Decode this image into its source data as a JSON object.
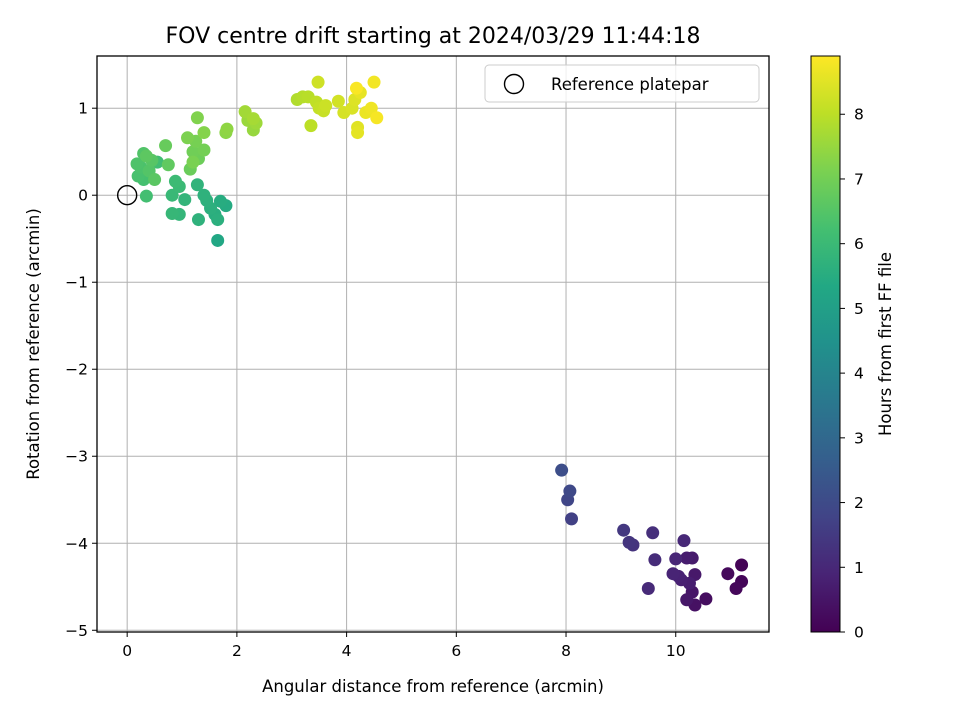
{
  "chart_data": {
    "type": "scatter",
    "title": "FOV centre drift starting at 2024/03/29 11:44:18",
    "xlabel": "Angular distance from reference (arcmin)",
    "ylabel": "Rotation from reference (arcmin)",
    "xlim": [
      -0.55,
      11.7
    ],
    "ylim": [
      -5.02,
      1.6
    ],
    "xticks": [
      0,
      2,
      4,
      6,
      8,
      10
    ],
    "yticks": [
      -5,
      -4,
      -3,
      -2,
      -1,
      0,
      1
    ],
    "xtick_labels": [
      "0",
      "2",
      "4",
      "6",
      "8",
      "10"
    ],
    "ytick_labels": [
      "−5",
      "−4",
      "−3",
      "−2",
      "−1",
      "0",
      "1"
    ],
    "grid": true,
    "colormap": "viridis",
    "colorbar": {
      "label": "Hours from first FF file",
      "range": [
        0,
        8.9
      ],
      "ticks": [
        0,
        1,
        2,
        3,
        4,
        5,
        6,
        7,
        8
      ],
      "tick_labels": [
        "0",
        "1",
        "2",
        "3",
        "4",
        "5",
        "6",
        "7",
        "8"
      ]
    },
    "legend": {
      "position": "top-right",
      "entries": [
        {
          "label": "Reference platepar",
          "marker": "open-circle"
        }
      ]
    },
    "reference_point": {
      "x": 0,
      "y": 0
    },
    "series": [
      {
        "points": [
          [
            11.2,
            -4.25,
            0.05
          ],
          [
            11.2,
            -4.44,
            0.1
          ],
          [
            11.1,
            -4.52,
            0.15
          ],
          [
            10.95,
            -4.35,
            0.2
          ],
          [
            10.55,
            -4.64,
            0.3
          ],
          [
            10.35,
            -4.71,
            0.4
          ],
          [
            10.3,
            -4.56,
            0.5
          ],
          [
            10.2,
            -4.65,
            0.55
          ],
          [
            10.35,
            -4.36,
            0.6
          ],
          [
            10.3,
            -4.17,
            0.65
          ],
          [
            10.2,
            -4.17,
            0.7
          ],
          [
            10.25,
            -4.46,
            0.75
          ],
          [
            10.1,
            -4.42,
            0.8
          ],
          [
            10.05,
            -4.38,
            0.85
          ],
          [
            9.95,
            -4.35,
            0.9
          ],
          [
            10.0,
            -4.18,
            0.95
          ],
          [
            10.15,
            -3.97,
            1.0
          ],
          [
            9.5,
            -4.52,
            1.05
          ],
          [
            9.62,
            -4.19,
            1.1
          ],
          [
            9.58,
            -3.88,
            1.2
          ],
          [
            9.22,
            -4.02,
            1.3
          ],
          [
            9.15,
            -3.99,
            1.35
          ],
          [
            9.05,
            -3.85,
            1.45
          ],
          [
            8.1,
            -3.72,
            1.7
          ],
          [
            8.03,
            -3.5,
            1.85
          ],
          [
            8.07,
            -3.4,
            1.95
          ],
          [
            7.92,
            -3.16,
            2.1
          ],
          [
            1.65,
            -0.52,
            5.3
          ],
          [
            1.8,
            -0.12,
            5.45
          ],
          [
            1.7,
            -0.07,
            5.5
          ],
          [
            1.6,
            -0.22,
            5.55
          ],
          [
            1.65,
            -0.28,
            5.6
          ],
          [
            1.52,
            -0.15,
            5.62
          ],
          [
            1.45,
            -0.06,
            5.65
          ],
          [
            1.4,
            0.0,
            5.68
          ],
          [
            1.3,
            -0.28,
            5.7
          ],
          [
            1.28,
            0.12,
            5.75
          ],
          [
            1.05,
            -0.05,
            5.8
          ],
          [
            0.95,
            -0.22,
            5.85
          ],
          [
            0.82,
            -0.21,
            5.9
          ],
          [
            0.82,
            0.0,
            5.95
          ],
          [
            0.95,
            0.1,
            6.0
          ],
          [
            0.88,
            0.16,
            6.05
          ],
          [
            0.55,
            0.38,
            6.15
          ],
          [
            0.35,
            -0.01,
            6.2
          ],
          [
            0.3,
            0.18,
            6.25
          ],
          [
            0.2,
            0.22,
            6.3
          ],
          [
            0.25,
            0.32,
            6.35
          ],
          [
            0.18,
            0.36,
            6.4
          ],
          [
            0.3,
            0.48,
            6.45
          ],
          [
            0.4,
            0.28,
            6.5
          ],
          [
            0.45,
            0.4,
            6.55
          ],
          [
            0.5,
            0.18,
            6.6
          ],
          [
            0.35,
            0.45,
            6.65
          ],
          [
            0.75,
            0.35,
            6.7
          ],
          [
            0.7,
            0.57,
            6.8
          ],
          [
            1.15,
            0.3,
            6.85
          ],
          [
            1.3,
            0.42,
            6.9
          ],
          [
            1.2,
            0.5,
            6.95
          ],
          [
            1.4,
            0.52,
            7.0
          ],
          [
            1.25,
            0.62,
            7.05
          ],
          [
            1.2,
            0.38,
            7.1
          ],
          [
            1.1,
            0.66,
            7.15
          ],
          [
            1.28,
            0.89,
            7.2
          ],
          [
            1.4,
            0.72,
            7.25
          ],
          [
            1.8,
            0.72,
            7.35
          ],
          [
            1.82,
            0.76,
            7.4
          ],
          [
            2.3,
            0.75,
            7.5
          ],
          [
            2.2,
            0.86,
            7.55
          ],
          [
            2.35,
            0.83,
            7.6
          ],
          [
            2.15,
            0.96,
            7.65
          ],
          [
            2.3,
            0.88,
            7.7
          ],
          [
            3.1,
            1.1,
            7.85
          ],
          [
            3.2,
            1.13,
            7.9
          ],
          [
            3.3,
            1.13,
            7.95
          ],
          [
            3.35,
            0.8,
            8.0
          ],
          [
            3.45,
            1.07,
            8.05
          ],
          [
            3.5,
            1.0,
            8.1
          ],
          [
            3.58,
            0.97,
            8.15
          ],
          [
            3.62,
            1.03,
            8.2
          ],
          [
            3.48,
            1.3,
            8.25
          ],
          [
            3.85,
            1.08,
            8.3
          ],
          [
            3.95,
            0.95,
            8.35
          ],
          [
            4.1,
            1.0,
            8.4
          ],
          [
            4.15,
            1.1,
            8.45
          ],
          [
            4.2,
            0.78,
            8.5
          ],
          [
            4.2,
            0.72,
            8.55
          ],
          [
            4.25,
            1.18,
            8.6
          ],
          [
            4.35,
            0.95,
            8.65
          ],
          [
            4.45,
            1.0,
            8.7
          ],
          [
            4.5,
            1.3,
            8.75
          ],
          [
            4.55,
            0.89,
            8.8
          ],
          [
            4.18,
            1.23,
            8.85
          ]
        ]
      }
    ]
  }
}
